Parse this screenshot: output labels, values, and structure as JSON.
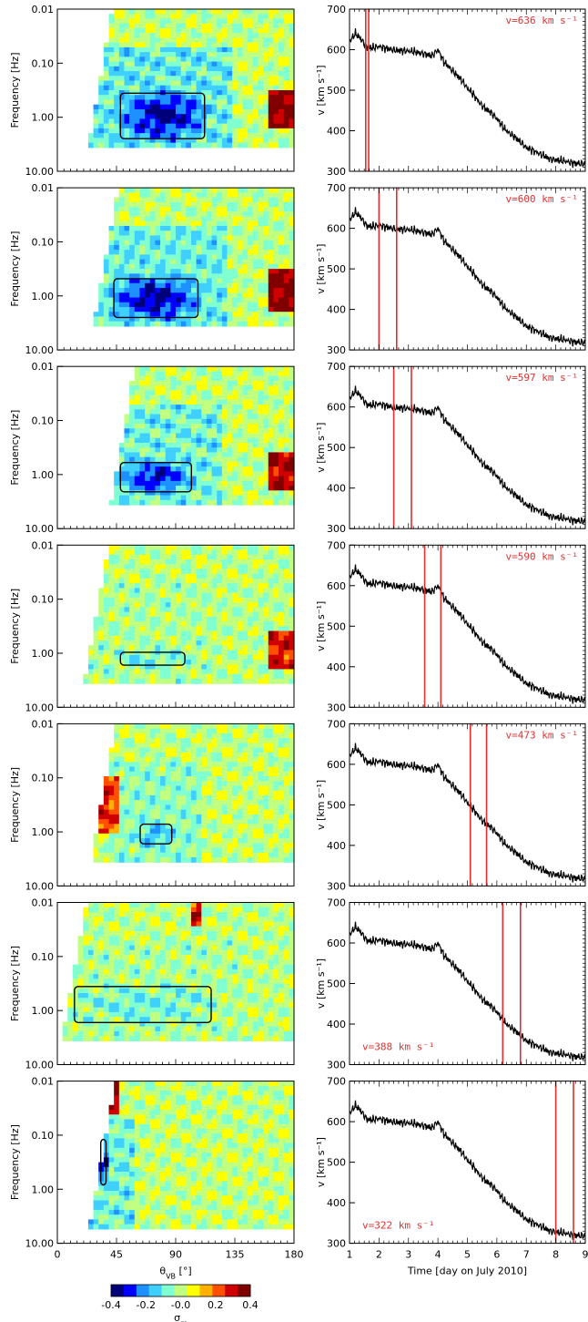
{
  "chart_data": [
    {
      "type": "heatmap",
      "role": "spectrogram-grid",
      "xlabel": "θ_VB [°]",
      "ylabel": "Frequency [Hz]",
      "xlim": [
        0,
        180
      ],
      "x_ticks": [
        "0",
        "45",
        "90",
        "135",
        "180"
      ],
      "y_ticks": [
        "0.01",
        "0.10",
        "1.00",
        "10.00"
      ],
      "colorbar": {
        "label": "σ_m",
        "range": [
          -0.4,
          0.4
        ],
        "ticks": [
          "-0.4",
          "-0.2",
          "-0.0",
          "0.2",
          "0.4"
        ],
        "colors": [
          "#00007a",
          "#0000ff",
          "#1e90ff",
          "#40d0ff",
          "#80ffd0",
          "#c0ff80",
          "#ffff00",
          "#ffb000",
          "#ff5000",
          "#d00000",
          "#800000"
        ]
      },
      "panels": [
        {
          "theta_min": 20,
          "f_top": 0.01,
          "f_bottom": 3.5,
          "blob": {
            "theta": [
              45,
              115
            ],
            "f": [
              0.3,
              3.0
            ],
            "level": -0.4
          },
          "hot": {
            "theta": [
              160,
              180
            ],
            "f": [
              0.3,
              1.5
            ],
            "level": 0.4
          }
        },
        {
          "theta_min": 24,
          "f_top": 0.01,
          "f_bottom": 3.5,
          "blob": {
            "theta": [
              40,
              110
            ],
            "f": [
              0.4,
              3.0
            ],
            "level": -0.4
          },
          "hot": {
            "theta": [
              160,
              180
            ],
            "f": [
              0.3,
              2.0
            ],
            "level": 0.4
          }
        },
        {
          "theta_min": 37,
          "f_top": 0.01,
          "f_bottom": 3.5,
          "blob": {
            "theta": [
              45,
              105
            ],
            "f": [
              0.5,
              2.5
            ],
            "level": -0.35
          },
          "hot": {
            "theta": [
              160,
              180
            ],
            "f": [
              0.4,
              2.0
            ],
            "level": 0.35
          }
        },
        {
          "theta_min": 17,
          "f_top": 0.01,
          "f_bottom": 3.5,
          "blob": {
            "theta": [
              45,
              100
            ],
            "f": [
              0.8,
              2.0
            ],
            "level": -0.1
          },
          "hot": {
            "theta": [
              160,
              180
            ],
            "f": [
              0.4,
              1.8
            ],
            "level": 0.3
          }
        },
        {
          "theta_min": 22,
          "f_top": 0.01,
          "f_bottom": 3.5,
          "blob": {
            "theta": [
              60,
              90
            ],
            "f": [
              0.6,
              2.0
            ],
            "level": -0.2
          },
          "hot": {
            "theta": [
              25,
              45
            ],
            "f": [
              0.1,
              1.0
            ],
            "level": 0.3
          }
        },
        {
          "theta_min": 0,
          "f_top": 0.01,
          "f_bottom": 3.5,
          "blob": {
            "theta": [
              10,
              120
            ],
            "f": [
              0.3,
              2.0
            ],
            "level": -0.1
          },
          "hot": {
            "theta": [
              100,
              110
            ],
            "f": [
              0.01,
              0.03
            ],
            "level": 0.3
          }
        },
        {
          "theta_min": 22,
          "f_top": 0.01,
          "f_bottom": 5.0,
          "blob": {
            "theta": [
              30,
              40
            ],
            "f": [
              0.1,
              1.0
            ],
            "level": -0.35
          },
          "hot": {
            "theta": [
              30,
              45
            ],
            "f": [
              0.01,
              0.04
            ],
            "level": 0.35
          }
        }
      ]
    },
    {
      "type": "line",
      "role": "solar-wind-speed-grid",
      "xlabel": "Time [day on July 2010]",
      "ylabel": "v [km s⁻¹]",
      "xlim": [
        1,
        9
      ],
      "ylim": [
        300,
        700
      ],
      "x_ticks": [
        "1",
        "2",
        "3",
        "4",
        "5",
        "6",
        "7",
        "8",
        "9"
      ],
      "y_ticks": [
        "300",
        "400",
        "500",
        "600",
        "700"
      ],
      "series": [
        {
          "x": [
            1.0,
            1.2,
            1.4,
            1.6,
            1.8,
            2.0,
            2.3,
            2.6,
            2.9,
            3.2,
            3.5,
            3.8,
            4.0,
            4.2,
            4.4,
            4.6,
            4.8,
            5.0,
            5.2,
            5.4,
            5.6,
            5.8,
            6.0,
            6.2,
            6.4,
            6.6,
            6.8,
            7.0,
            7.2,
            7.4,
            7.6,
            7.8,
            8.0,
            8.3,
            8.6,
            9.0
          ],
          "y": [
            620,
            640,
            625,
            605,
            605,
            608,
            602,
            598,
            597,
            595,
            590,
            585,
            600,
            570,
            555,
            540,
            525,
            505,
            490,
            470,
            455,
            445,
            430,
            410,
            395,
            385,
            372,
            358,
            352,
            345,
            338,
            330,
            328,
            325,
            320,
            318
          ]
        }
      ],
      "windows": [
        [
          1.55,
          1.65
        ],
        [
          2.0,
          2.6
        ],
        [
          2.5,
          3.1
        ],
        [
          3.55,
          4.1
        ],
        [
          5.1,
          5.65
        ],
        [
          6.2,
          6.8
        ],
        [
          8.0,
          8.6
        ]
      ],
      "annotations": [
        {
          "text": "v=636 km s⁻¹",
          "pos": "top-right"
        },
        {
          "text": "v=600 km s⁻¹",
          "pos": "top-right"
        },
        {
          "text": "v=597 km s⁻¹",
          "pos": "top-right"
        },
        {
          "text": "v=590 km s⁻¹",
          "pos": "top-right"
        },
        {
          "text": "v=473 km s⁻¹",
          "pos": "top-right"
        },
        {
          "text": "v=388 km s⁻¹",
          "pos": "bottom-left"
        },
        {
          "text": "v=322 km s⁻¹",
          "pos": "bottom-left"
        }
      ]
    }
  ],
  "colors": {
    "window": "#e03030",
    "annotation": "#e03030",
    "line": "#000000"
  }
}
